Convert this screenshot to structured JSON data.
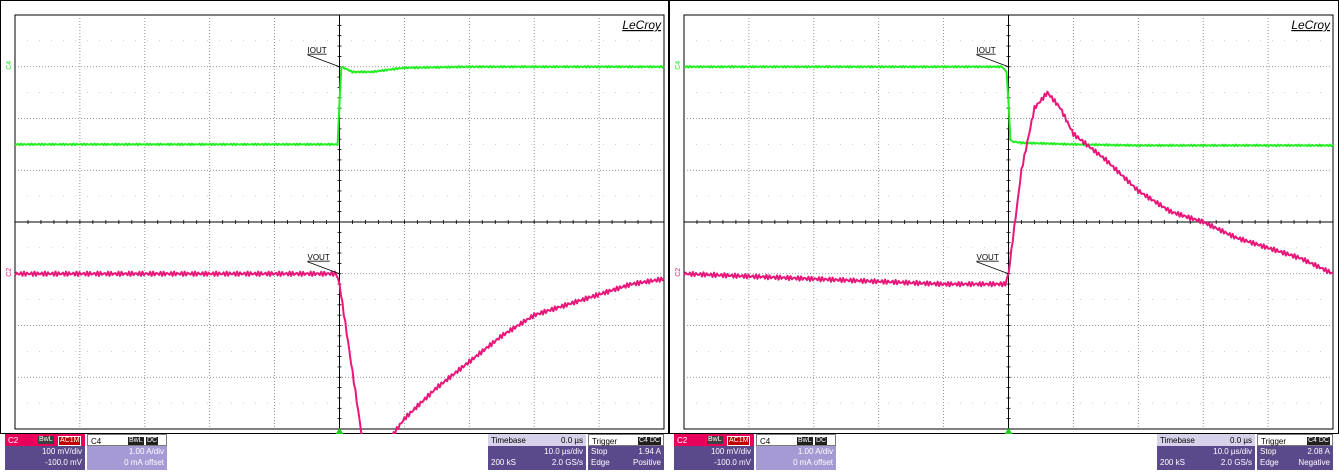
{
  "chart_data": [
    {
      "type": "line",
      "title": "",
      "brand": "LeCroy",
      "xlabel": "",
      "ylabel": "",
      "x_unit": "µs",
      "xlim": [
        -50,
        50
      ],
      "grid": true,
      "divisions": {
        "horizontal": 10,
        "vertical": 8
      },
      "series": [
        {
          "name": "IOUT",
          "channel": "C4",
          "color": "#22ee22",
          "x": [
            -50,
            -0.3,
            0.0,
            0.3,
            2,
            5,
            8,
            10,
            20,
            30,
            50
          ],
          "y": [
            -1.5,
            -1.5,
            -0.7,
            0.0,
            -0.1,
            -0.1,
            -0.05,
            -0.02,
            0.0,
            0.0,
            0.0
          ]
        },
        {
          "name": "VOUT",
          "channel": "C2",
          "color": "#e8177a",
          "x": [
            -50,
            -10,
            -0.5,
            0,
            2,
            4,
            6,
            10,
            15,
            20,
            25,
            30,
            35,
            40,
            45,
            50
          ],
          "y": [
            0.0,
            0.0,
            0.0,
            -0.02,
            -0.19,
            -0.36,
            -0.35,
            -0.28,
            -0.22,
            -0.17,
            -0.12,
            -0.08,
            -0.06,
            -0.04,
            -0.02,
            -0.01
          ]
        }
      ],
      "annotations": [
        {
          "text": "IOUT",
          "x": -2,
          "y": 1.7
        },
        {
          "text": "VOUT",
          "x": -2,
          "y": 1.2
        }
      ],
      "markers": {
        "left": [
          "C4",
          "C2"
        ]
      },
      "info": {
        "c2": {
          "label": "C2",
          "tag1": "BwL",
          "tag2": "AC1M",
          "scale": "100 mV/div",
          "offset": "-100.0 mV"
        },
        "c4": {
          "label": "C4",
          "tag1": "BwL",
          "tag2": "DC",
          "scale": "1.00 A/div",
          "offset": "0 mA offset"
        },
        "timebase": {
          "label": "Timebase",
          "delay": "0.0 µs",
          "div": "10.0 µs/div",
          "samples": "200 kS",
          "rate": "2.0 GS/s"
        },
        "trigger": {
          "label": "Trigger",
          "tag": "C4 DC",
          "mode": "Stop",
          "level": "1.94 A",
          "type": "Edge",
          "slope": "Positive"
        }
      }
    },
    {
      "type": "line",
      "title": "",
      "brand": "LeCroy",
      "xlabel": "",
      "ylabel": "",
      "x_unit": "µs",
      "xlim": [
        -50,
        50
      ],
      "grid": true,
      "divisions": {
        "horizontal": 10,
        "vertical": 8
      },
      "series": [
        {
          "name": "IOUT",
          "channel": "C4",
          "color": "#22ee22",
          "x": [
            -50,
            -1,
            -0.3,
            0.0,
            0.3,
            0.6,
            1,
            2,
            5,
            10,
            20,
            30,
            50
          ],
          "y": [
            0.0,
            0.0,
            -0.1,
            -0.7,
            -1.4,
            -1.45,
            -1.45,
            -1.47,
            -1.48,
            -1.5,
            -1.52,
            -1.52,
            -1.52
          ]
        },
        {
          "name": "VOUT",
          "channel": "C2",
          "color": "#e8177a",
          "x": [
            -50,
            -10,
            -0.5,
            0,
            2,
            4,
            6,
            8,
            10,
            15,
            20,
            25,
            30,
            35,
            40,
            45,
            50
          ],
          "y": [
            0.0,
            -0.02,
            -0.02,
            0.0,
            0.2,
            0.32,
            0.35,
            0.32,
            0.27,
            0.22,
            0.16,
            0.12,
            0.1,
            0.07,
            0.05,
            0.03,
            0.0
          ]
        }
      ],
      "annotations": [
        {
          "text": "IOUT",
          "x": -2,
          "y": 1.7
        },
        {
          "text": "VOUT",
          "x": -2,
          "y": 1.2
        }
      ],
      "markers": {
        "left": [
          "C4",
          "C2"
        ]
      },
      "info": {
        "c2": {
          "label": "C2",
          "tag1": "BwL",
          "tag2": "AC1M",
          "scale": "100 mV/div",
          "offset": "-100.0 mV"
        },
        "c4": {
          "label": "C4",
          "tag1": "BwL",
          "tag2": "DC",
          "scale": "1.00 A/div",
          "offset": "0 mA offset"
        },
        "timebase": {
          "label": "Timebase",
          "delay": "0.0 µs",
          "div": "10.0 µs/div",
          "samples": "200 kS",
          "rate": "2.0 GS/s"
        },
        "trigger": {
          "label": "Trigger",
          "tag": "C4 DC",
          "mode": "Stop",
          "level": "2.08 A",
          "type": "Edge",
          "slope": "Negative"
        }
      }
    }
  ]
}
